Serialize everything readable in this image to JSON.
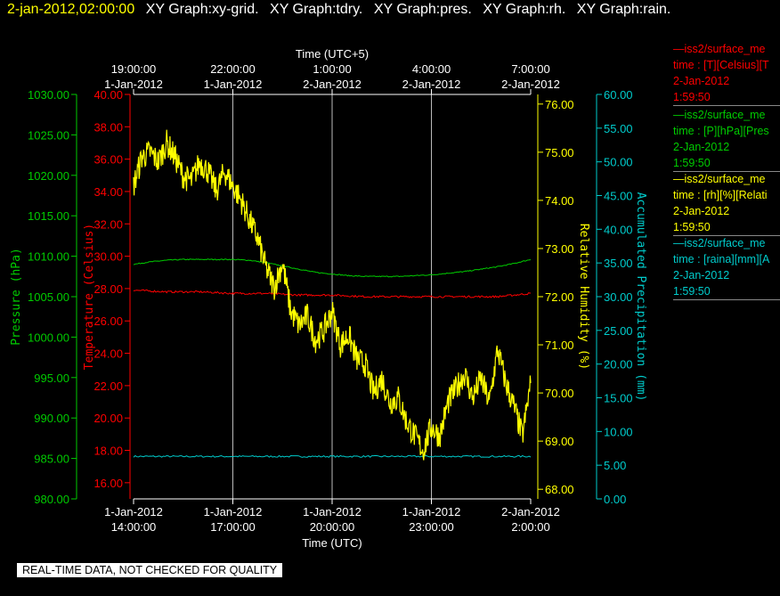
{
  "title_bar": {
    "timestamp": "2-jan-2012,02:00:00",
    "graphs": [
      "XY Graph:xy-grid.",
      "XY Graph:tdry.",
      "XY Graph:pres.",
      "XY Graph:rh.",
      "XY Graph:rain."
    ]
  },
  "colors": {
    "temp": "#ff0000",
    "pres": "#00cc00",
    "rh": "#ffff00",
    "rain": "#00cccc",
    "grid": "#ffffff",
    "axis": "#ffffff"
  },
  "legend": [
    {
      "line1": "iss2/surface_me",
      "line2": "time : [T][Celsius][T",
      "line3": "2-Jan-2012",
      "line4": "1:59:50",
      "color": "#ff0000"
    },
    {
      "line1": "iss2/surface_me",
      "line2": "time : [P][hPa][Pres",
      "line3": "2-Jan-2012",
      "line4": "1:59:50",
      "color": "#00cc00"
    },
    {
      "line1": "iss2/surface_me",
      "line2": "time : [rh][%][Relati",
      "line3": "2-Jan-2012",
      "line4": "1:59:50",
      "color": "#ffff00"
    },
    {
      "line1": "iss2/surface_me",
      "line2": "time : [raina][mm][A",
      "line3": "2-Jan-2012",
      "line4": "1:59:50",
      "color": "#00cccc"
    }
  ],
  "quality_note": "REAL-TIME DATA, NOT CHECKED FOR QUALITY",
  "chart_data": {
    "type": "line",
    "x_unit": "hours since 1-Jan-2012 14:00 UTC",
    "xlim": [
      0,
      12
    ],
    "xlabel_bottom": "Time (UTC)",
    "xlabel_top": "Time (UTC+5)",
    "bottom_ticks": [
      {
        "x": 0,
        "date": "1-Jan-2012",
        "time": "14:00:00"
      },
      {
        "x": 3,
        "date": "1-Jan-2012",
        "time": "17:00:00"
      },
      {
        "x": 6,
        "date": "1-Jan-2012",
        "time": "20:00:00"
      },
      {
        "x": 9,
        "date": "1-Jan-2012",
        "time": "23:00:00"
      },
      {
        "x": 12,
        "date": "2-Jan-2012",
        "time": "2:00:00"
      }
    ],
    "top_ticks": [
      {
        "x": 0,
        "time": "19:00:00",
        "date": "1-Jan-2012"
      },
      {
        "x": 3,
        "time": "22:00:00",
        "date": "1-Jan-2012"
      },
      {
        "x": 6,
        "time": "1:00:00",
        "date": "2-Jan-2012"
      },
      {
        "x": 9,
        "time": "4:00:00",
        "date": "2-Jan-2012"
      },
      {
        "x": 12,
        "time": "7:00:00",
        "date": "2-Jan-2012"
      }
    ],
    "axes": {
      "pres": {
        "label": "Pressure (hPa)",
        "min": 980,
        "max": 1030,
        "step": 5,
        "ticks": [
          "980.00",
          "985.00",
          "990.00",
          "995.00",
          "1000.00",
          "1005.00",
          "1010.00",
          "1015.00",
          "1020.00",
          "1025.00",
          "1030.00"
        ]
      },
      "temp": {
        "label": "Temperature (Celsius)",
        "min": 15,
        "max": 40,
        "step": 2,
        "ticks": [
          "16.00",
          "18.00",
          "20.00",
          "22.00",
          "24.00",
          "26.00",
          "28.00",
          "30.00",
          "32.00",
          "34.00",
          "36.00",
          "38.00",
          "40.00"
        ]
      },
      "rh": {
        "label": "Relative Humidity (%)",
        "min": 67.8,
        "max": 76.2,
        "step": 1,
        "ticks": [
          "68.00",
          "69.00",
          "70.00",
          "71.00",
          "72.00",
          "73.00",
          "74.00",
          "75.00",
          "76.00"
        ]
      },
      "rain": {
        "label": "Accumulated Precipitation (mm)",
        "min": 0,
        "max": 60,
        "step": 5,
        "ticks": [
          "0.00",
          "5.00",
          "10.00",
          "15.00",
          "20.00",
          "25.00",
          "30.00",
          "35.00",
          "40.00",
          "45.00",
          "50.00",
          "55.00",
          "60.00"
        ]
      }
    },
    "grid": true,
    "series": [
      {
        "name": "T [Celsius]",
        "axis": "temp",
        "x": [
          0,
          1,
          2,
          3,
          4,
          5,
          6,
          7,
          8,
          9,
          10,
          11,
          12
        ],
        "y": [
          27.9,
          27.8,
          27.8,
          27.7,
          27.7,
          27.6,
          27.6,
          27.5,
          27.5,
          27.5,
          27.5,
          27.5,
          27.7
        ]
      },
      {
        "name": "P [hPa]",
        "axis": "pres",
        "x": [
          0,
          0.5,
          1,
          1.5,
          2,
          2.5,
          3,
          3.5,
          4,
          4.5,
          5,
          5.5,
          6,
          6.5,
          7,
          7.5,
          8,
          8.5,
          9,
          9.5,
          10,
          10.5,
          11,
          11.5,
          12
        ],
        "y": [
          1009.0,
          1009.3,
          1009.5,
          1009.6,
          1009.6,
          1009.6,
          1009.6,
          1009.5,
          1009.2,
          1008.8,
          1008.4,
          1008.0,
          1007.8,
          1007.6,
          1007.5,
          1007.5,
          1007.5,
          1007.6,
          1007.7,
          1007.9,
          1008.1,
          1008.4,
          1008.7,
          1009.1,
          1009.6
        ]
      },
      {
        "name": "rh [%]",
        "axis": "rh",
        "x": [
          0,
          0.25,
          0.5,
          0.75,
          1,
          1.25,
          1.5,
          1.75,
          2,
          2.25,
          2.5,
          2.75,
          3,
          3.25,
          3.5,
          3.75,
          4,
          4.25,
          4.5,
          4.75,
          5,
          5.25,
          5.5,
          5.75,
          6,
          6.25,
          6.5,
          6.75,
          7,
          7.25,
          7.5,
          7.75,
          8,
          8.25,
          8.5,
          8.75,
          9,
          9.25,
          9.5,
          9.75,
          10,
          10.25,
          10.5,
          10.75,
          11,
          11.25,
          11.5,
          11.75,
          12
        ],
        "y": [
          74.3,
          74.9,
          75.0,
          74.8,
          75.2,
          74.9,
          74.5,
          74.4,
          74.8,
          74.6,
          74.2,
          74.6,
          74.3,
          74.0,
          73.6,
          73.2,
          72.6,
          72.2,
          72.7,
          71.7,
          71.4,
          71.6,
          71.1,
          71.3,
          71.7,
          71.0,
          71.2,
          70.7,
          70.6,
          70.0,
          70.3,
          69.8,
          69.9,
          69.4,
          69.1,
          68.8,
          69.3,
          69.1,
          69.8,
          70.1,
          70.4,
          69.9,
          70.3,
          69.8,
          70.9,
          70.2,
          69.7,
          69.1,
          70.2
        ]
      },
      {
        "name": "raina [mm]",
        "axis": "rain",
        "x": [
          0,
          12
        ],
        "y": [
          6.3,
          6.3
        ]
      }
    ]
  }
}
